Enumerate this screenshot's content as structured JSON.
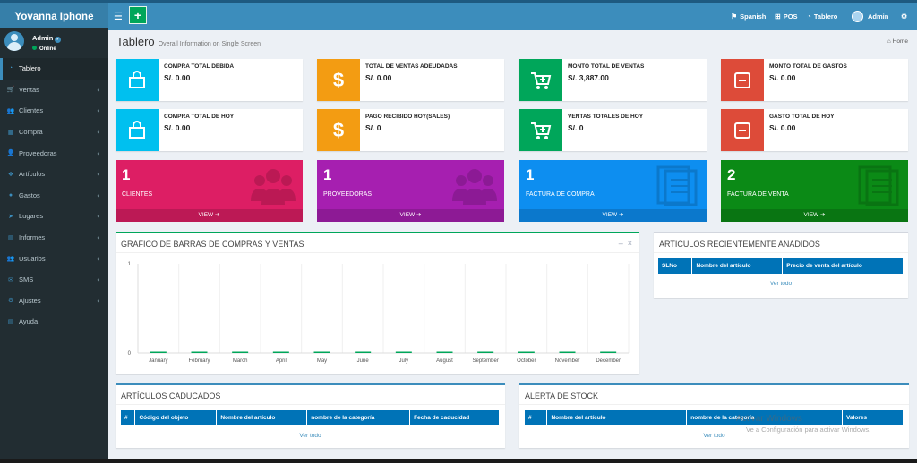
{
  "brand": "Yovanna Iphone",
  "topnav": {
    "spanish": "Spanish",
    "pos": "POS",
    "tablero": "Tablero",
    "admin": "Admin"
  },
  "user": {
    "name": "Admin",
    "status": "Online"
  },
  "menu": [
    {
      "label": "Tablero",
      "icon": "dashboard-icon",
      "active": true
    },
    {
      "label": "Ventas",
      "icon": "cart-icon"
    },
    {
      "label": "Clientes",
      "icon": "users-icon"
    },
    {
      "label": "Compra",
      "icon": "grid-icon"
    },
    {
      "label": "Proveedoras",
      "icon": "user-plus-icon"
    },
    {
      "label": "Artículos",
      "icon": "cubes-icon"
    },
    {
      "label": "Gastos",
      "icon": "circle-icon"
    },
    {
      "label": "Lugares",
      "icon": "location-arrow-icon"
    },
    {
      "label": "Informes",
      "icon": "bar-chart-icon"
    },
    {
      "label": "Usuarios",
      "icon": "users-icon"
    },
    {
      "label": "SMS",
      "icon": "envelope-icon"
    },
    {
      "label": "Ajustes",
      "icon": "cogs-icon"
    },
    {
      "label": "Ayuda",
      "icon": "book-icon"
    }
  ],
  "page": {
    "title": "Tablero",
    "subtitle": "Overall Information on Single Screen",
    "breadcrumb": "Home"
  },
  "info_boxes": [
    {
      "label": "COMPRA TOTAL DEBIDA",
      "value": "S/. 0.00",
      "color": "#00c0ef",
      "icon": "shopping-bag-icon"
    },
    {
      "label": "TOTAL DE VENTAS ADEUDADAS",
      "value": "S/. 0.00",
      "color": "#f39c12",
      "icon": "dollar-icon"
    },
    {
      "label": "MONTO TOTAL DE VENTAS",
      "value": "S/. 3,887.00",
      "color": "#00a65a",
      "icon": "cart-plus-icon"
    },
    {
      "label": "MONTO TOTAL DE GASTOS",
      "value": "S/. 0.00",
      "color": "#dd4b39",
      "icon": "minus-square-icon"
    },
    {
      "label": "COMPRA TOTAL DE HOY",
      "value": "S/. 0.00",
      "color": "#00c0ef",
      "icon": "shopping-bag-icon"
    },
    {
      "label": "PAGO RECIBIDO HOY(SALES)",
      "value": "S/. 0",
      "color": "#f39c12",
      "icon": "dollar-icon"
    },
    {
      "label": "VENTAS TOTALES DE HOY",
      "value": "S/. 0",
      "color": "#00a65a",
      "icon": "cart-plus-icon"
    },
    {
      "label": "GASTO TOTAL DE HOY",
      "value": "S/. 0.00",
      "color": "#dd4b39",
      "icon": "minus-square-icon"
    }
  ],
  "small_boxes": [
    {
      "count": "1",
      "label": "CLIENTES",
      "link": "VIEW",
      "color": "#dd1e64",
      "icon": "users-icon"
    },
    {
      "count": "1",
      "label": "PROVEEDORAS",
      "link": "VIEW",
      "color": "#a61fb0",
      "icon": "users-icon"
    },
    {
      "count": "1",
      "label": "FACTURA DE COMPRA",
      "link": "VIEW",
      "color": "#0d8ef0",
      "icon": "documents-icon"
    },
    {
      "count": "2",
      "label": "FACTURA DE VENTA",
      "link": "VIEW",
      "color": "#0b8a16",
      "icon": "documents-icon"
    }
  ],
  "chart_card": {
    "title": "GRÁFICO DE BARRAS DE COMPRAS Y VENTAS",
    "minimize": "–",
    "close": "×"
  },
  "chart_data": {
    "type": "bar",
    "categories": [
      "January",
      "February",
      "March",
      "April",
      "May",
      "June",
      "July",
      "August",
      "September",
      "October",
      "November",
      "December"
    ],
    "series": [
      {
        "values": [
          0,
          0,
          0,
          0,
          0,
          0,
          0,
          0,
          0,
          0,
          0,
          0
        ],
        "color": "#00a65a"
      }
    ],
    "yticks": [
      "0",
      "1"
    ],
    "ylim": [
      0,
      1
    ],
    "grid": true
  },
  "recent": {
    "title": "ARTÍCULOS RECIENTEMENTE AÑADIDOS",
    "headers": [
      "SLNo",
      "Nombre del artículo",
      "Precio de venta del artículo"
    ],
    "link": "Ver todo"
  },
  "expired": {
    "title": "ARTÍCULOS CADUCADOS",
    "headers": [
      "#",
      "Código del objeto",
      "Nombre del artículo",
      "nombre de la categoría",
      "Fecha de caducidad"
    ],
    "link": "Ver todo"
  },
  "stock": {
    "title": "ALERTA DE STOCK",
    "headers": [
      "#",
      "Nombre del artículo",
      "nombre de la categoría",
      "Valores"
    ],
    "link": "Ver todo"
  },
  "watermark": {
    "line1": "Activar Windows",
    "line2": "Ve a Configuración para activar Windows."
  }
}
